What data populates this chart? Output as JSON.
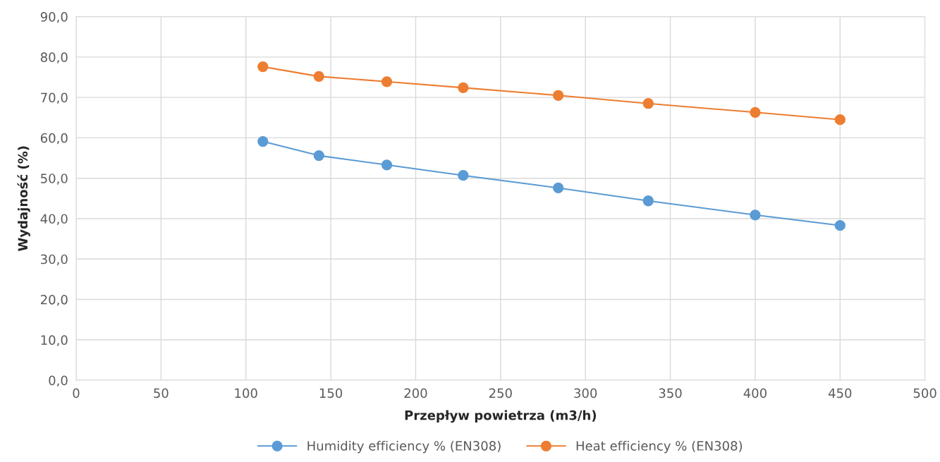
{
  "chart_data": {
    "type": "line",
    "xlabel": "Przepływ powietrza (m3/h)",
    "ylabel": "Wydajność (%)",
    "x": [
      110,
      143,
      183,
      228,
      284,
      337,
      400,
      450
    ],
    "series": [
      {
        "name": "Humidity efficiency % (EN308)",
        "color": "#5b9bd5",
        "values": [
          59.1,
          55.6,
          53.3,
          50.7,
          47.6,
          44.4,
          40.9,
          38.3
        ]
      },
      {
        "name": "Heat efficiency % (EN308)",
        "color": "#ed7d31",
        "values": [
          77.6,
          75.2,
          73.9,
          72.4,
          70.5,
          68.5,
          66.3,
          64.5
        ]
      }
    ],
    "xlim": [
      0,
      500
    ],
    "xticks": [
      0,
      50,
      100,
      150,
      200,
      250,
      300,
      350,
      400,
      450,
      500
    ],
    "ylim": [
      0,
      90
    ],
    "yticks": [
      {
        "value": 0,
        "label": "0,0"
      },
      {
        "value": 10,
        "label": "10,0"
      },
      {
        "value": 20,
        "label": "20,0"
      },
      {
        "value": 30,
        "label": "30,0"
      },
      {
        "value": 40,
        "label": "40,0"
      },
      {
        "value": 50,
        "label": "50,0"
      },
      {
        "value": 60,
        "label": "60,0"
      },
      {
        "value": 70,
        "label": "70,0"
      },
      {
        "value": 80,
        "label": "80,0"
      },
      {
        "value": 90,
        "label": "90,0"
      }
    ],
    "grid": true,
    "legend": "bottom",
    "marker": "circle",
    "line_style": "solid"
  }
}
